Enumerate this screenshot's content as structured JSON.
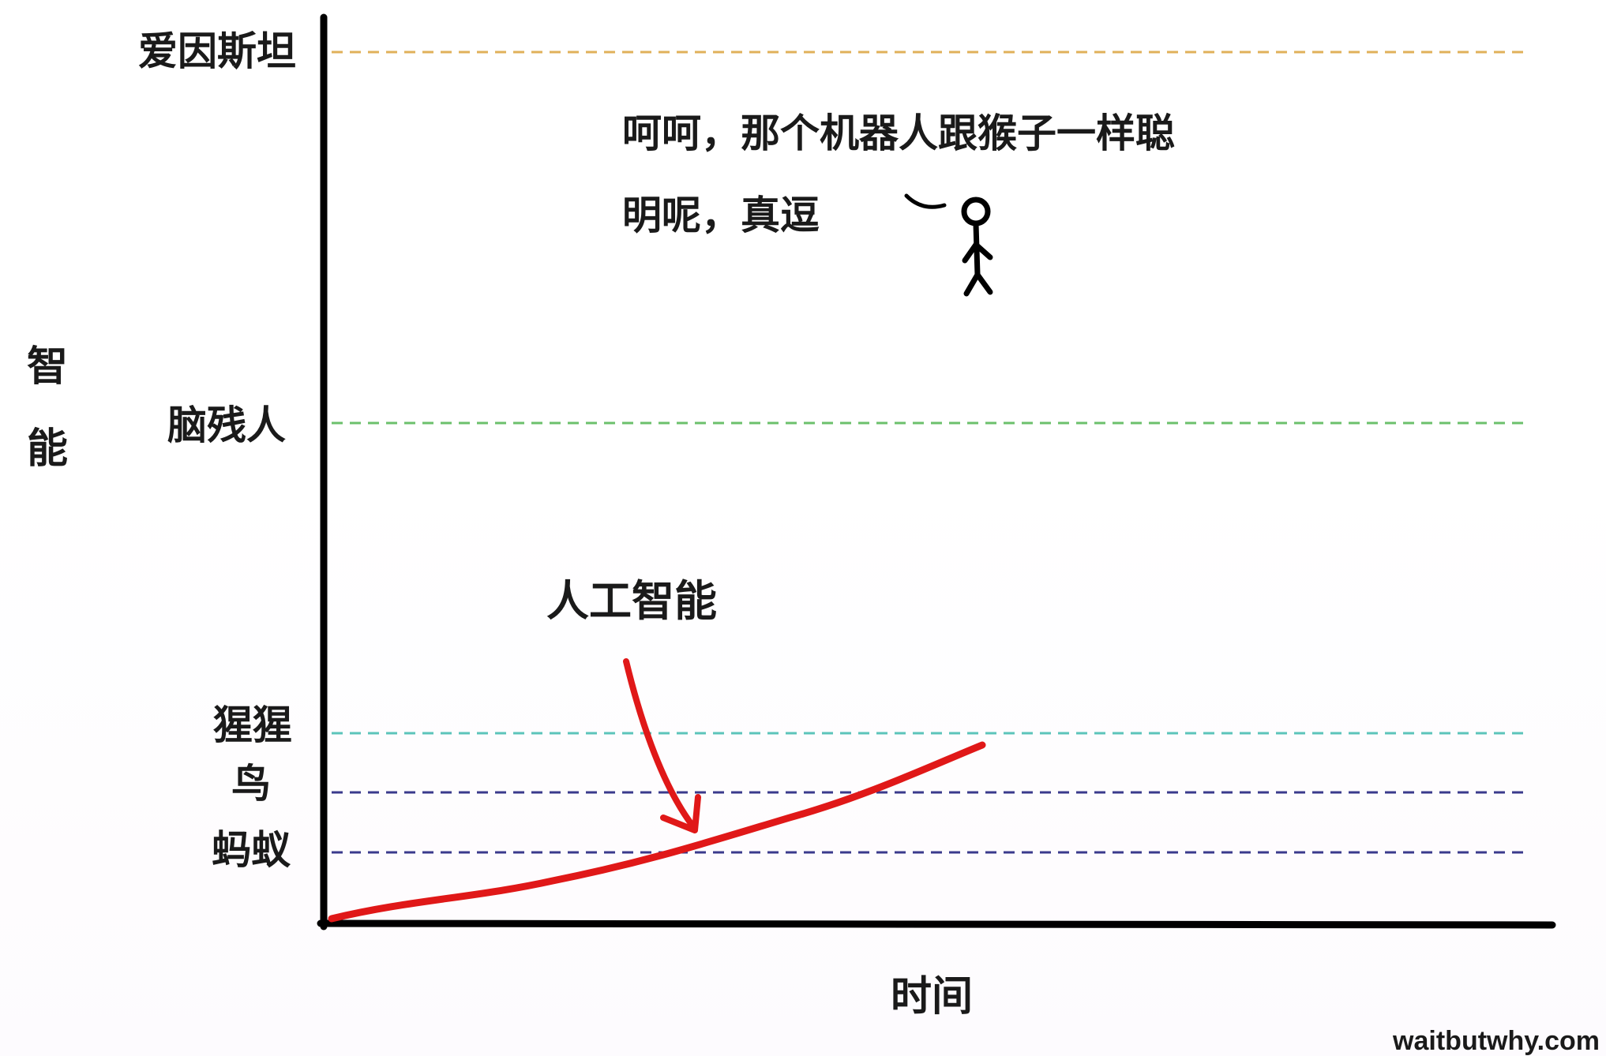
{
  "diagram": {
    "y_axis_title_chars": [
      "智",
      "能"
    ],
    "x_axis_title": "时间",
    "levels": [
      {
        "label": "爱因斯坦",
        "color": "#e0b15a"
      },
      {
        "label": "脑残人",
        "color": "#6cc06c"
      },
      {
        "label": "猩猩",
        "color": "#5cc4ba"
      },
      {
        "label": "鸟",
        "color": "#3a3a8c"
      },
      {
        "label": "蚂蚁",
        "color": "#3a3a8c"
      }
    ],
    "speech_lines": [
      "呵呵，那个机器人跟猴子一样聪",
      "明呢，真逗"
    ],
    "ai_label": "人工智能",
    "ai_curve_color": "#e01818",
    "credit": "waitbutwhy.com"
  }
}
